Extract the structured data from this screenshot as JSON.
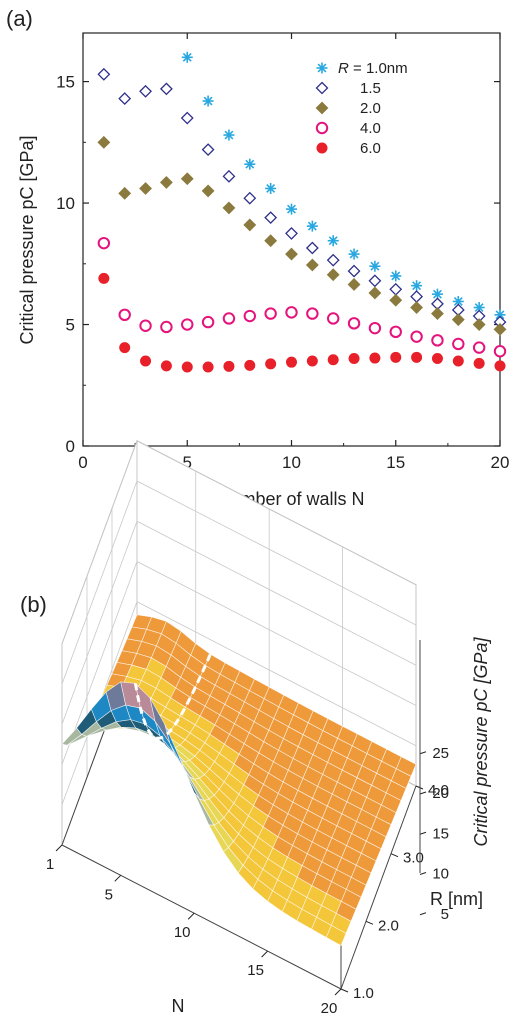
{
  "panel_a_label": "(a)",
  "panel_b_label": "(b)",
  "chart_data": [
    {
      "type": "scatter",
      "title": "",
      "xlabel": "Number of walls N",
      "ylabel": "Critical pressure pC [GPa]",
      "xlim": [
        0,
        20
      ],
      "ylim": [
        0,
        17
      ],
      "xticks": [
        0,
        5,
        10,
        15,
        20
      ],
      "yticks": [
        0,
        5,
        10,
        15
      ],
      "legend_position": "top-right",
      "legend_title": "R = 1.0nm",
      "series": [
        {
          "name": "R = 1.0nm",
          "label": "",
          "marker": "asterisk",
          "color": "#29a8e0",
          "x": [
            5,
            6,
            7,
            8,
            9,
            10,
            11,
            12,
            13,
            14,
            15,
            16,
            17,
            18,
            19,
            20
          ],
          "y": [
            16.0,
            14.2,
            12.8,
            11.6,
            10.6,
            9.75,
            9.05,
            8.45,
            7.9,
            7.4,
            7.0,
            6.6,
            6.25,
            5.95,
            5.7,
            5.4
          ]
        },
        {
          "name": "1.5",
          "label": "1.5",
          "marker": "diamond-open",
          "color": "#2e2f8a",
          "x": [
            1,
            2,
            3,
            4,
            5,
            6,
            7,
            8,
            9,
            10,
            11,
            12,
            13,
            14,
            15,
            16,
            17,
            18,
            19,
            20
          ],
          "y": [
            15.3,
            14.3,
            14.6,
            14.7,
            13.5,
            12.2,
            11.1,
            10.2,
            9.4,
            8.75,
            8.15,
            7.65,
            7.2,
            6.8,
            6.45,
            6.15,
            5.85,
            5.6,
            5.35,
            5.1
          ]
        },
        {
          "name": "2.0",
          "label": "2.0",
          "marker": "diamond-filled",
          "color": "#8b7a3e",
          "x": [
            1,
            2,
            3,
            4,
            5,
            6,
            7,
            8,
            9,
            10,
            11,
            12,
            13,
            14,
            15,
            16,
            17,
            18,
            19,
            20
          ],
          "y": [
            12.5,
            10.4,
            10.6,
            10.85,
            11.0,
            10.5,
            9.8,
            9.1,
            8.45,
            7.9,
            7.45,
            7.05,
            6.65,
            6.3,
            6.0,
            5.7,
            5.45,
            5.2,
            5.0,
            4.8
          ]
        },
        {
          "name": "4.0",
          "label": "4.0",
          "marker": "circle-open",
          "color": "#e5137c",
          "x": [
            1,
            2,
            3,
            4,
            5,
            6,
            7,
            8,
            9,
            10,
            11,
            12,
            13,
            14,
            15,
            16,
            17,
            18,
            19,
            20
          ],
          "y": [
            8.35,
            5.4,
            4.95,
            4.9,
            5.0,
            5.1,
            5.25,
            5.35,
            5.45,
            5.5,
            5.45,
            5.25,
            5.05,
            4.85,
            4.7,
            4.5,
            4.35,
            4.2,
            4.05,
            3.9
          ]
        },
        {
          "name": "6.0",
          "label": "6.0",
          "marker": "circle-filled",
          "color": "#e8202a",
          "x": [
            1,
            2,
            3,
            4,
            5,
            6,
            7,
            8,
            9,
            10,
            11,
            12,
            13,
            14,
            15,
            16,
            17,
            18,
            19,
            20
          ],
          "y": [
            6.9,
            4.05,
            3.5,
            3.3,
            3.25,
            3.25,
            3.28,
            3.32,
            3.38,
            3.45,
            3.5,
            3.55,
            3.6,
            3.62,
            3.65,
            3.65,
            3.6,
            3.5,
            3.4,
            3.3
          ]
        }
      ]
    },
    {
      "type": "surface",
      "title": "",
      "xlabel": "N",
      "ylabel": "R [nm]",
      "zlabel": "Critical pressure pC [GPa]",
      "xticks": [
        1,
        5,
        10,
        15,
        20
      ],
      "yticks": [
        "1.0",
        "2.0",
        "3.0",
        "4.0"
      ],
      "zticks": [
        5,
        10,
        15,
        20,
        25
      ],
      "xlim": [
        1,
        20
      ],
      "ylim": [
        1.0,
        4.0
      ],
      "zlim": [
        0,
        25
      ],
      "colormap": [
        "#ef9a3a",
        "#f4c63a",
        "#e8d655",
        "#a8b8a0",
        "#1e5c78",
        "#1e88c4",
        "#6e7a9a",
        "#b98a98"
      ],
      "ridge_line": "dashed, white, at N = 6",
      "note": "peak ~24 GPa near N = 6, R = 1.0 nm"
    }
  ]
}
